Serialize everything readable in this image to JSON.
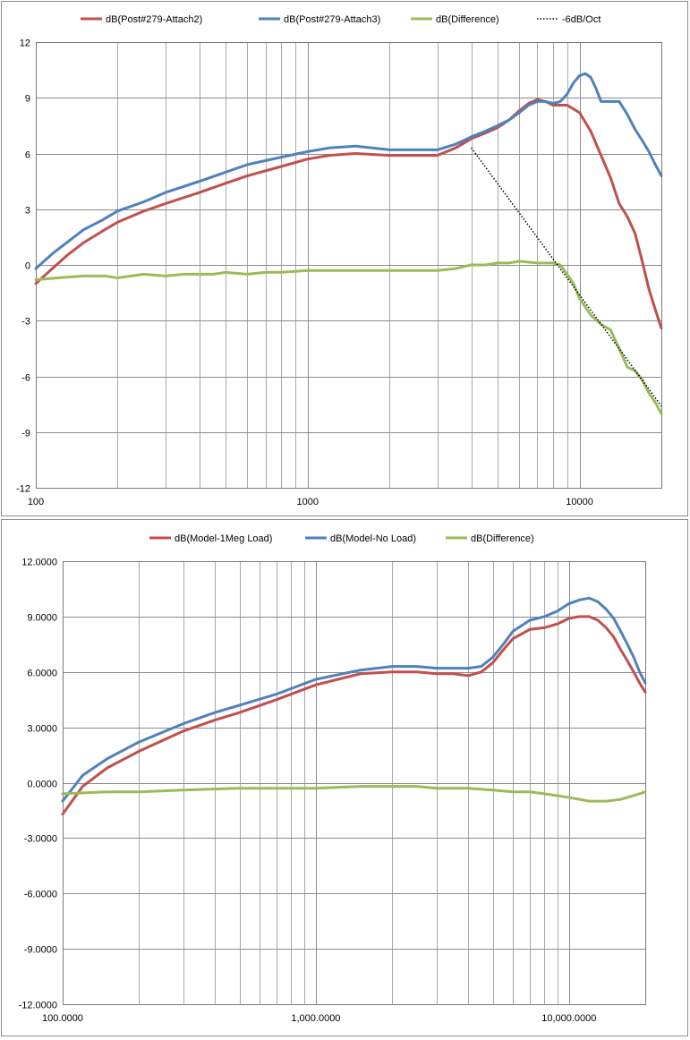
{
  "chart_data": [
    {
      "type": "line",
      "xscale": "log",
      "xlim": [
        100,
        20000
      ],
      "ylim": [
        -12,
        12
      ],
      "yticks": [
        "12",
        "9",
        "6",
        "3",
        "0",
        "-3",
        "-6",
        "-9",
        "-12"
      ],
      "xticks": [
        {
          "value": 100,
          "label": "100"
        },
        {
          "value": 1000,
          "label": "1000"
        },
        {
          "value": 10000,
          "label": "10000"
        }
      ],
      "grid": true,
      "legend_position": "top",
      "series": [
        {
          "name": "dB(Post#279-Attach2)",
          "color": "#c0504d",
          "style": "solid",
          "x": [
            100,
            115,
            130,
            150,
            175,
            200,
            250,
            300,
            400,
            500,
            600,
            800,
            1000,
            1200,
            1500,
            2000,
            2500,
            3000,
            3500,
            4000,
            4500,
            5000,
            5500,
            6000,
            6500,
            7000,
            7500,
            8000,
            8500,
            9000,
            10000,
            11000,
            12000,
            13000,
            14000,
            15000,
            16000,
            17000,
            18000,
            19000,
            20000
          ],
          "y": [
            -1.0,
            -0.2,
            0.5,
            1.2,
            1.8,
            2.3,
            2.9,
            3.3,
            3.9,
            4.4,
            4.8,
            5.3,
            5.7,
            5.9,
            6.0,
            5.9,
            5.9,
            5.9,
            6.3,
            6.8,
            7.1,
            7.4,
            7.8,
            8.3,
            8.7,
            8.9,
            8.8,
            8.6,
            8.6,
            8.6,
            8.2,
            7.2,
            5.9,
            4.7,
            3.3,
            2.6,
            1.7,
            0.2,
            -1.3,
            -2.4,
            -3.4
          ]
        },
        {
          "name": "dB(Post#279-Attach3)",
          "color": "#4f81bd",
          "style": "solid",
          "x": [
            100,
            115,
            130,
            150,
            175,
            200,
            250,
            300,
            400,
            500,
            600,
            800,
            1000,
            1200,
            1500,
            2000,
            2500,
            3000,
            3500,
            4000,
            4500,
            5000,
            5500,
            6000,
            6500,
            7000,
            7500,
            8000,
            8500,
            9000,
            9500,
            10000,
            10500,
            11000,
            11500,
            12000,
            13000,
            14000,
            15000,
            16000,
            17000,
            18000,
            19000,
            20000
          ],
          "y": [
            -0.2,
            0.6,
            1.2,
            1.9,
            2.4,
            2.9,
            3.4,
            3.9,
            4.5,
            5.0,
            5.4,
            5.8,
            6.1,
            6.3,
            6.4,
            6.2,
            6.2,
            6.2,
            6.5,
            6.9,
            7.2,
            7.5,
            7.8,
            8.2,
            8.6,
            8.8,
            8.8,
            8.7,
            8.8,
            9.2,
            9.8,
            10.2,
            10.3,
            10.1,
            9.5,
            8.8,
            8.8,
            8.8,
            8.1,
            7.3,
            6.7,
            6.1,
            5.4,
            4.8
          ]
        },
        {
          "name": "dB(Difference)",
          "color": "#9bbb59",
          "style": "solid",
          "x": [
            100,
            120,
            150,
            180,
            200,
            250,
            300,
            350,
            400,
            450,
            500,
            600,
            700,
            800,
            1000,
            1500,
            2000,
            2500,
            3000,
            3500,
            4000,
            4500,
            5000,
            5500,
            6000,
            7000,
            8000,
            8500,
            9000,
            9500,
            10000,
            11000,
            12000,
            13000,
            14000,
            15000,
            16000,
            17000,
            18000,
            19000,
            20000
          ],
          "y": [
            -0.8,
            -0.7,
            -0.6,
            -0.6,
            -0.7,
            -0.5,
            -0.6,
            -0.5,
            -0.5,
            -0.5,
            -0.4,
            -0.5,
            -0.4,
            -0.4,
            -0.3,
            -0.3,
            -0.3,
            -0.3,
            -0.3,
            -0.2,
            0.0,
            0.0,
            0.1,
            0.1,
            0.2,
            0.1,
            0.1,
            0.0,
            -0.5,
            -1.0,
            -1.8,
            -2.7,
            -3.2,
            -3.5,
            -4.5,
            -5.5,
            -5.7,
            -6.2,
            -6.9,
            -7.4,
            -8.0
          ]
        },
        {
          "name": "-6dB/Oct",
          "color": "#000000",
          "style": "dotted",
          "x": [
            4000,
            20000
          ],
          "y": [
            6.3,
            -7.6
          ]
        }
      ]
    },
    {
      "type": "line",
      "xscale": "log",
      "xlim": [
        100,
        20000
      ],
      "ylim": [
        -12,
        12
      ],
      "yticks": [
        "12.0000",
        "9.0000",
        "6.0000",
        "3.0000",
        "0.0000",
        "-3.0000",
        "-6.0000",
        "-9.0000",
        "-12.0000"
      ],
      "xticks": [
        {
          "value": 100,
          "label": "100.0000"
        },
        {
          "value": 1000,
          "label": "1,000.0000"
        },
        {
          "value": 10000,
          "label": "10,000.0000"
        }
      ],
      "grid": true,
      "legend_position": "top",
      "series": [
        {
          "name": "dB(Model-1Meg Load)",
          "color": "#c0504d",
          "style": "solid",
          "x": [
            100,
            120,
            150,
            200,
            300,
            400,
            500,
            700,
            1000,
            1500,
            2000,
            2500,
            3000,
            3500,
            4000,
            4500,
            5000,
            5500,
            6000,
            7000,
            8000,
            9000,
            10000,
            11000,
            12000,
            13000,
            14000,
            15000,
            16000,
            17000,
            18000,
            19000,
            20000
          ],
          "y": [
            -1.7,
            -0.2,
            0.8,
            1.7,
            2.8,
            3.4,
            3.8,
            4.5,
            5.3,
            5.9,
            6.0,
            6.0,
            5.9,
            5.9,
            5.8,
            6.0,
            6.5,
            7.2,
            7.8,
            8.3,
            8.4,
            8.6,
            8.9,
            9.0,
            9.0,
            8.8,
            8.4,
            7.9,
            7.2,
            6.6,
            6.0,
            5.4,
            4.9
          ]
        },
        {
          "name": "dB(Model-No Load)",
          "color": "#4f81bd",
          "style": "solid",
          "x": [
            100,
            120,
            150,
            200,
            300,
            400,
            500,
            700,
            1000,
            1500,
            2000,
            2500,
            3000,
            3500,
            4000,
            4500,
            5000,
            5500,
            6000,
            7000,
            8000,
            9000,
            10000,
            11000,
            12000,
            13000,
            14000,
            15000,
            16000,
            17000,
            18000,
            19000,
            20000
          ],
          "y": [
            -1.0,
            0.4,
            1.3,
            2.2,
            3.2,
            3.8,
            4.2,
            4.8,
            5.6,
            6.1,
            6.3,
            6.3,
            6.2,
            6.2,
            6.2,
            6.3,
            6.8,
            7.5,
            8.2,
            8.8,
            9.0,
            9.3,
            9.7,
            9.9,
            10.0,
            9.8,
            9.4,
            8.9,
            8.2,
            7.5,
            6.8,
            6.0,
            5.4
          ]
        },
        {
          "name": "dB(Difference)",
          "color": "#9bbb59",
          "style": "solid",
          "x": [
            100,
            150,
            200,
            300,
            500,
            1000,
            1500,
            2000,
            2500,
            3000,
            4000,
            5000,
            6000,
            7000,
            8000,
            10000,
            12000,
            14000,
            16000,
            18000,
            20000
          ],
          "y": [
            -0.6,
            -0.5,
            -0.5,
            -0.4,
            -0.3,
            -0.3,
            -0.2,
            -0.2,
            -0.2,
            -0.3,
            -0.3,
            -0.4,
            -0.5,
            -0.5,
            -0.6,
            -0.8,
            -1.0,
            -1.0,
            -0.9,
            -0.7,
            -0.5
          ]
        }
      ]
    }
  ]
}
